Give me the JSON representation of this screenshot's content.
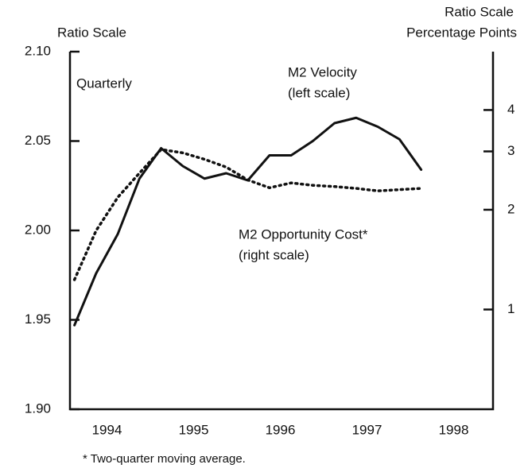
{
  "chart_data": {
    "type": "line",
    "y_axis_label": "Ratio Scale",
    "y2_axis_label": "Ratio Scale",
    "y2_axis_sublabel": "Percentage Points",
    "annotations": [
      "Quarterly",
      "(left scale)",
      "(right scale)"
    ],
    "footnote": "* Two-quarter moving average.",
    "x": [
      1993.625,
      1993.875,
      1994.125,
      1994.375,
      1994.625,
      1994.875,
      1995.125,
      1995.375,
      1995.625,
      1995.875,
      1996.125,
      1996.375,
      1996.625,
      1996.875,
      1997.125,
      1997.375,
      1997.625
    ],
    "xlim": [
      1993.5,
      1998.5
    ],
    "xticks": [
      1994,
      1995,
      1996,
      1997,
      1998
    ],
    "ylim": [
      1.9,
      2.1
    ],
    "yticks": [
      {
        "value": 1.9,
        "label": "1.90"
      },
      1.95,
      {
        "value": 2.0,
        "label": "2.00"
      },
      2.05,
      {
        "value": 2.1,
        "label": "2.10"
      }
    ],
    "y2lim": [
      0.5,
      6
    ],
    "y2ticks": [
      1,
      2,
      3,
      4
    ],
    "y2_log_scale": true,
    "series": [
      {
        "name": "M2 Velocity",
        "color": "#111111",
        "style": "solid",
        "values": [
          1.947,
          1.976,
          1.998,
          2.029,
          2.046,
          2.036,
          2.029,
          2.032,
          2.028,
          2.042,
          2.042,
          2.05,
          2.06,
          2.063,
          2.058,
          2.051,
          2.034
        ]
      },
      {
        "name": "M2 Opportunity Cost*",
        "color": "#111111",
        "style": "dotted",
        "axis": "y2",
        "values": [
          1.23,
          1.73,
          2.18,
          2.58,
          3.04,
          2.97,
          2.84,
          2.69,
          2.46,
          2.33,
          2.41,
          2.37,
          2.35,
          2.32,
          2.28,
          2.3,
          2.32
        ]
      }
    ]
  }
}
